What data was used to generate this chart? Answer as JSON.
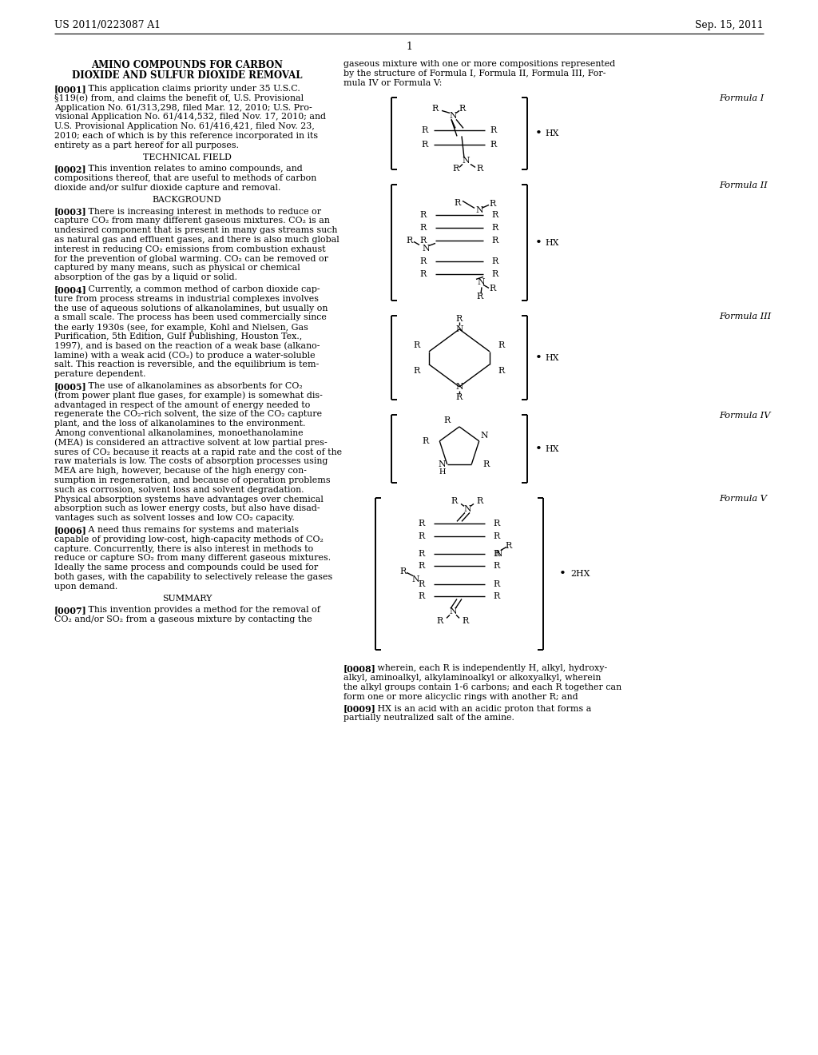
{
  "bg_color": "#ffffff",
  "text_color": "#000000",
  "header_left": "US 2011/0223087 A1",
  "header_right": "Sep. 15, 2011",
  "page_number": "1",
  "title_line1": "AMINO COMPOUNDS FOR CARBON",
  "title_line2": "DIOXIDE AND SULFUR DIOXIDE REMOVAL",
  "para0001": "[0001]   This application claims priority under 35 U.S.C.\n§119(e) from, and claims the benefit of, U.S. Provisional\nApplication No. 61/313,298, filed Mar. 12, 2010; U.S. Pro-\nvisional Application No. 61/414,532, filed Nov. 17, 2010; and\nU.S. Provisional Application No. 61/416,421, filed Nov. 23,\n2010; each of which is by this reference incorporated in its\nentirety as a part hereof for all purposes.",
  "section_tf": "TECHNICAL FIELD",
  "para0002": "[0002]   This invention relates to amino compounds, and\ncompositions thereof, that are useful to methods of carbon\ndioxide and/or sulfur dioxide capture and removal.",
  "section_bg": "BACKGROUND",
  "para0003": "[0003]   There is increasing interest in methods to reduce or\ncapture CO₂ from many different gaseous mixtures. CO₂ is an\nundesired component that is present in many gas streams such\nas natural gas and effluent gases, and there is also much global\ninterest in reducing CO₂ emissions from combustion exhaust\nfor the prevention of global warming. CO₂ can be removed or\ncaptured by many means, such as physical or chemical\nabsorption of the gas by a liquid or solid.",
  "para0004": "[0004]   Currently, a common method of carbon dioxide cap-\nture from process streams in industrial complexes involves\nthe use of aqueous solutions of alkanolamines, but usually on\na small scale. The process has been used commercially since\nthe early 1930s (see, for example, Kohl and Nielsen, Gas\nPurification, 5th Edition, Gulf Publishing, Houston Tex.,\n1997), and is based on the reaction of a weak base (alkano-\nlamine) with a weak acid (CO₂) to produce a water-soluble\nsalt. This reaction is reversible, and the equilibrium is tem-\nperature dependent.",
  "para0005": "[0005]   The use of alkanolamines as absorbents for CO₂\n(from power plant flue gases, for example) is somewhat dis-\nadvantaged in respect of the amount of energy needed to\nregenerate the CO₂-rich solvent, the size of the CO₂ capture\nplant, and the loss of alkanolamines to the environment.\nAmong conventional alkanolamines, monoethanolamine\n(MEA) is considered an attractive solvent at low partial pres-\nsures of CO₂ because it reacts at a rapid rate and the cost of the\nraw materials is low. The costs of absorption processes using\nMEA are high, however, because of the high energy con-\nsumption in regeneration, and because of operation problems\nsuch as corrosion, solvent loss and solvent degradation.\nPhysical absorption systems have advantages over chemical\nabsorption such as lower energy costs, but also have disad-\nvantages such as solvent losses and low CO₂ capacity.",
  "para0006": "[0006]   A need thus remains for systems and materials\ncapable of providing low-cost, high-capacity methods of CO₂\ncapture. Concurrently, there is also interest in methods to\nreduce or capture SO₂ from many different gaseous mixtures.\nIdeally the same process and compounds could be used for\nboth gases, with the capability to selectively release the gases\nupon demand.",
  "section_sum": "SUMMARY",
  "para0007": "[0007]   This invention provides a method for the removal of\nCO₂ and/or SO₂ from a gaseous mixture by contacting the",
  "right_intro": "gaseous mixture with one or more compositions represented\nby the structure of Formula I, Formula II, Formula III, For-\nmula IV or Formula V:",
  "para0008": "[0008]   wherein, each R is independently H, alkyl, hydroxy-\nalkyl, aminoalkyl, alkylaminoalkyl or alkoxyalkyl, wherein\nthe alkyl groups contain 1-6 carbons; and each R together can\nform one or more alicyclic rings with another R; and",
  "para0009": "[0009]   HX is an acid with an acidic proton that forms a\npartially neutralized salt of the amine."
}
